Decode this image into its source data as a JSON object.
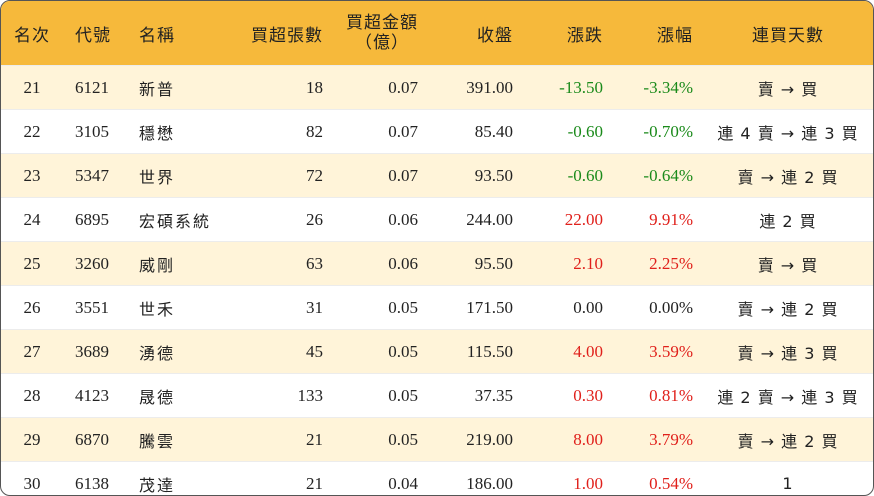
{
  "headers": {
    "rank": "名次",
    "code": "代號",
    "name": "名稱",
    "net_buy_lots": "買超張數",
    "net_buy_amount_l1": "買超金額",
    "net_buy_amount_l2": "（億）",
    "close": "收盤",
    "change": "漲跌",
    "change_pct": "漲幅",
    "streak": "連買天數"
  },
  "colors": {
    "header_bg": "#F6B93B",
    "alt_row_bg": "#FFF4D9",
    "up": "#E0201B",
    "down": "#1A8A1A"
  },
  "rows": [
    {
      "rank": "21",
      "code": "6121",
      "name": "新普",
      "lots": "18",
      "amount": "0.07",
      "close": "391.00",
      "change": "-13.50",
      "pct": "-3.34%",
      "dir": "down",
      "streak": "賣 → 買"
    },
    {
      "rank": "22",
      "code": "3105",
      "name": "穩懋",
      "lots": "82",
      "amount": "0.07",
      "close": "85.40",
      "change": "-0.60",
      "pct": "-0.70%",
      "dir": "down",
      "streak": "連 4 賣 → 連 3 買"
    },
    {
      "rank": "23",
      "code": "5347",
      "name": "世界",
      "lots": "72",
      "amount": "0.07",
      "close": "93.50",
      "change": "-0.60",
      "pct": "-0.64%",
      "dir": "down",
      "streak": "賣 → 連 2 買"
    },
    {
      "rank": "24",
      "code": "6895",
      "name": "宏碩系統",
      "lots": "26",
      "amount": "0.06",
      "close": "244.00",
      "change": "22.00",
      "pct": "9.91%",
      "dir": "up",
      "streak": "連 2 買"
    },
    {
      "rank": "25",
      "code": "3260",
      "name": "威剛",
      "lots": "63",
      "amount": "0.06",
      "close": "95.50",
      "change": "2.10",
      "pct": "2.25%",
      "dir": "up",
      "streak": "賣 → 買"
    },
    {
      "rank": "26",
      "code": "3551",
      "name": "世禾",
      "lots": "31",
      "amount": "0.05",
      "close": "171.50",
      "change": "0.00",
      "pct": "0.00%",
      "dir": "flat",
      "streak": "賣 → 連 2 買"
    },
    {
      "rank": "27",
      "code": "3689",
      "name": "湧德",
      "lots": "45",
      "amount": "0.05",
      "close": "115.50",
      "change": "4.00",
      "pct": "3.59%",
      "dir": "up",
      "streak": "賣 → 連 3 買"
    },
    {
      "rank": "28",
      "code": "4123",
      "name": "晟德",
      "lots": "133",
      "amount": "0.05",
      "close": "37.35",
      "change": "0.30",
      "pct": "0.81%",
      "dir": "up",
      "streak": "連 2 賣 → 連 3 買"
    },
    {
      "rank": "29",
      "code": "6870",
      "name": "騰雲",
      "lots": "21",
      "amount": "0.05",
      "close": "219.00",
      "change": "8.00",
      "pct": "3.79%",
      "dir": "up",
      "streak": "賣 → 連 2 買"
    },
    {
      "rank": "30",
      "code": "6138",
      "name": "茂達",
      "lots": "21",
      "amount": "0.04",
      "close": "186.00",
      "change": "1.00",
      "pct": "0.54%",
      "dir": "up",
      "streak": "1"
    }
  ]
}
